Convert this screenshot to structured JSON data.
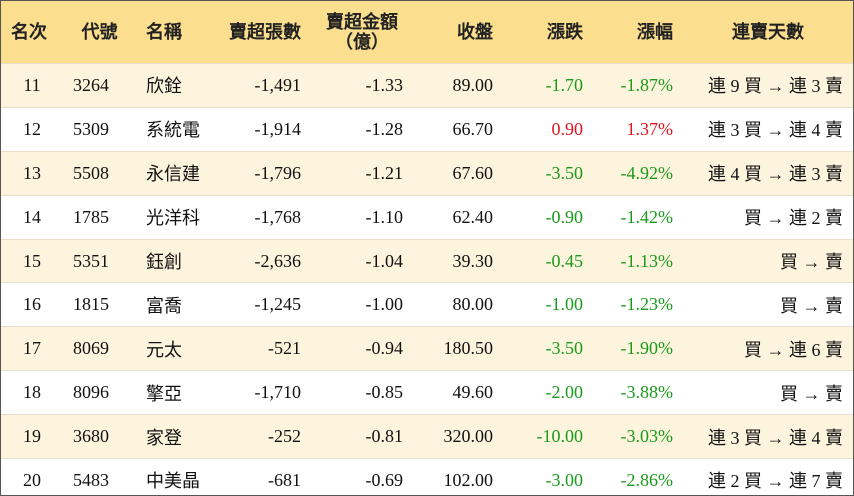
{
  "table": {
    "headers": [
      "名次",
      "代號",
      "名稱",
      "賣超張數",
      "賣超金額\n（億）",
      "收盤",
      "漲跌",
      "漲幅",
      "連賣天數"
    ],
    "rows": [
      [
        "11",
        "3264",
        "欣銓",
        "-1,491",
        "-1.33",
        "89.00",
        "-1.70",
        "-1.87%",
        "連 9 買 → 連 3 賣"
      ],
      [
        "12",
        "5309",
        "系統電",
        "-1,914",
        "-1.28",
        "66.70",
        "0.90",
        "1.37%",
        "連 3 買 → 連 4 賣"
      ],
      [
        "13",
        "5508",
        "永信建",
        "-1,796",
        "-1.21",
        "67.60",
        "-3.50",
        "-4.92%",
        "連 4 買 → 連 3 賣"
      ],
      [
        "14",
        "1785",
        "光洋科",
        "-1,768",
        "-1.10",
        "62.40",
        "-0.90",
        "-1.42%",
        "買 → 連 2 賣"
      ],
      [
        "15",
        "5351",
        "鈺創",
        "-2,636",
        "-1.04",
        "39.30",
        "-0.45",
        "-1.13%",
        "買 → 賣"
      ],
      [
        "16",
        "1815",
        "富喬",
        "-1,245",
        "-1.00",
        "80.00",
        "-1.00",
        "-1.23%",
        "買 → 賣"
      ],
      [
        "17",
        "8069",
        "元太",
        "-521",
        "-0.94",
        "180.50",
        "-3.50",
        "-1.90%",
        "買 → 連 6 賣"
      ],
      [
        "18",
        "8096",
        "擎亞",
        "-1,710",
        "-0.85",
        "49.60",
        "-2.00",
        "-3.88%",
        "買 → 賣"
      ],
      [
        "19",
        "3680",
        "家登",
        "-252",
        "-0.81",
        "320.00",
        "-10.00",
        "-3.03%",
        "連 3 買 → 連 4 賣"
      ],
      [
        "20",
        "5483",
        "中美晶",
        "-681",
        "-0.69",
        "102.00",
        "-3.00",
        "-2.86%",
        "連 2 買 → 連 7 賣"
      ]
    ]
  }
}
